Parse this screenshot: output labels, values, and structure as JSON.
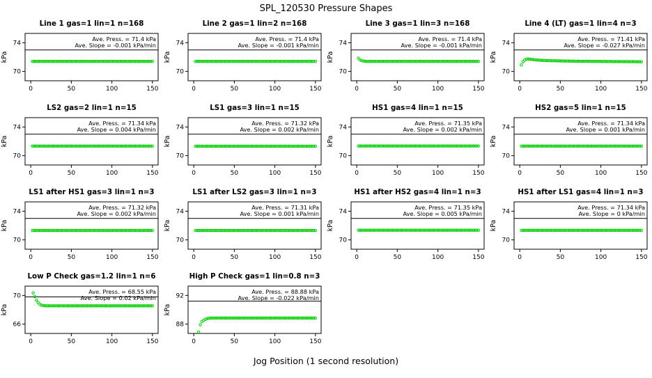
{
  "page": {
    "title": "SPL_120530  Pressure Shapes",
    "xlabel": "Jog Position (1 second resolution)"
  },
  "style": {
    "marker_color": "#00CC00",
    "axis_color": "#000000"
  },
  "chart_data": [
    {
      "type": "scatter",
      "title": "Line 1 gas=1 lin=1 n=168",
      "ann_press": "Ave. Press. = 71.4 kPa",
      "ann_slope": "Ave. Slope = -0.001 kPa/min",
      "ylabel": "kPa",
      "xticks": [
        0,
        50,
        100,
        150
      ],
      "yticks": [
        70,
        74
      ],
      "xlim": [
        -7,
        157
      ],
      "ylim": [
        68.7,
        75.3
      ],
      "ref_line": 73,
      "points": {
        "x_start": 2,
        "x_end": 150,
        "count": 74,
        "profile": [
          [
            2,
            71.4
          ],
          [
            150,
            71.4
          ]
        ]
      }
    },
    {
      "type": "scatter",
      "title": "Line 2 gas=1 lin=2 n=168",
      "ann_press": "Ave. Press. = 71.4 kPa",
      "ann_slope": "Ave. Slope = -0.001 kPa/min",
      "ylabel": "kPa",
      "xticks": [
        0,
        50,
        100,
        150
      ],
      "yticks": [
        70,
        74
      ],
      "xlim": [
        -7,
        157
      ],
      "ylim": [
        68.7,
        75.3
      ],
      "ref_line": 73,
      "points": {
        "x_start": 2,
        "x_end": 150,
        "count": 74,
        "profile": [
          [
            2,
            71.4
          ],
          [
            150,
            71.4
          ]
        ]
      }
    },
    {
      "type": "scatter",
      "title": "Line 3 gas=1 lin=3 n=168",
      "ann_press": "Ave. Press. = 71.4 kPa",
      "ann_slope": "Ave. Slope = -0.001 kPa/min",
      "ylabel": "kPa",
      "xticks": [
        0,
        50,
        100,
        150
      ],
      "yticks": [
        70,
        74
      ],
      "xlim": [
        -7,
        157
      ],
      "ylim": [
        68.7,
        75.3
      ],
      "ref_line": 73,
      "points": {
        "x_start": 2,
        "x_end": 150,
        "count": 74,
        "profile": [
          [
            2,
            71.85
          ],
          [
            4,
            71.6
          ],
          [
            8,
            71.45
          ],
          [
            12,
            71.4
          ],
          [
            150,
            71.4
          ]
        ]
      }
    },
    {
      "type": "scatter",
      "title": "Line 4 (LT) gas=1 lin=4 n=3",
      "ann_press": "Ave. Press. = 71.41 kPa",
      "ann_slope": "Ave. Slope = -0.027 kPa/min",
      "ylabel": "kPa",
      "xticks": [
        0,
        50,
        100,
        150
      ],
      "yticks": [
        70,
        74
      ],
      "xlim": [
        -7,
        157
      ],
      "ylim": [
        68.7,
        75.3
      ],
      "ref_line": 73,
      "points": {
        "x_start": 2,
        "x_end": 150,
        "count": 74,
        "profile": [
          [
            2,
            70.9
          ],
          [
            4,
            71.35
          ],
          [
            6,
            71.6
          ],
          [
            9,
            71.75
          ],
          [
            13,
            71.7
          ],
          [
            20,
            71.6
          ],
          [
            35,
            71.5
          ],
          [
            70,
            71.42
          ],
          [
            150,
            71.35
          ]
        ]
      }
    },
    {
      "type": "scatter",
      "title": "LS2 gas=2 lin=1 n=15",
      "ann_press": "Ave. Press. = 71.34 kPa",
      "ann_slope": "Ave. Slope = 0.004 kPa/min",
      "ylabel": "kPa",
      "xticks": [
        0,
        50,
        100,
        150
      ],
      "yticks": [
        70,
        74
      ],
      "xlim": [
        -7,
        157
      ],
      "ylim": [
        68.7,
        75.3
      ],
      "ref_line": 73,
      "points": {
        "x_start": 2,
        "x_end": 150,
        "count": 74,
        "profile": [
          [
            2,
            71.34
          ],
          [
            150,
            71.34
          ]
        ]
      }
    },
    {
      "type": "scatter",
      "title": "LS1 gas=3 lin=1 n=15",
      "ann_press": "Ave. Press. = 71.32 kPa",
      "ann_slope": "Ave. Slope = 0.002 kPa/min",
      "ylabel": "kPa",
      "xticks": [
        0,
        50,
        100,
        150
      ],
      "yticks": [
        70,
        74
      ],
      "xlim": [
        -7,
        157
      ],
      "ylim": [
        68.7,
        75.3
      ],
      "ref_line": 73,
      "points": {
        "x_start": 2,
        "x_end": 150,
        "count": 74,
        "profile": [
          [
            2,
            71.32
          ],
          [
            150,
            71.32
          ]
        ]
      }
    },
    {
      "type": "scatter",
      "title": "HS1 gas=4 lin=1 n=15",
      "ann_press": "Ave. Press. = 71.35 kPa",
      "ann_slope": "Ave. Slope = 0.002 kPa/min",
      "ylabel": "kPa",
      "xticks": [
        0,
        50,
        100,
        150
      ],
      "yticks": [
        70,
        74
      ],
      "xlim": [
        -7,
        157
      ],
      "ylim": [
        68.7,
        75.3
      ],
      "ref_line": 73,
      "points": {
        "x_start": 2,
        "x_end": 150,
        "count": 74,
        "profile": [
          [
            2,
            71.35
          ],
          [
            150,
            71.35
          ]
        ]
      }
    },
    {
      "type": "scatter",
      "title": "HS2 gas=5 lin=1 n=15",
      "ann_press": "Ave. Press. = 71.34 kPa",
      "ann_slope": "Ave. Slope = 0.001 kPa/min",
      "ylabel": "kPa",
      "xticks": [
        0,
        50,
        100,
        150
      ],
      "yticks": [
        70,
        74
      ],
      "xlim": [
        -7,
        157
      ],
      "ylim": [
        68.7,
        75.3
      ],
      "ref_line": 73,
      "points": {
        "x_start": 2,
        "x_end": 150,
        "count": 74,
        "profile": [
          [
            2,
            71.34
          ],
          [
            150,
            71.34
          ]
        ]
      }
    },
    {
      "type": "scatter",
      "title": "LS1 after HS1 gas=3 lin=1 n=3",
      "ann_press": "Ave. Press. = 71.32 kPa",
      "ann_slope": "Ave. Slope = 0.002 kPa/min",
      "ylabel": "kPa",
      "xticks": [
        0,
        50,
        100,
        150
      ],
      "yticks": [
        70,
        74
      ],
      "xlim": [
        -7,
        157
      ],
      "ylim": [
        68.7,
        75.3
      ],
      "ref_line": 73,
      "points": {
        "x_start": 2,
        "x_end": 150,
        "count": 74,
        "profile": [
          [
            2,
            71.32
          ],
          [
            150,
            71.32
          ]
        ]
      }
    },
    {
      "type": "scatter",
      "title": "LS1 after LS2 gas=3 lin=1 n=3",
      "ann_press": "Ave. Press. = 71.31 kPa",
      "ann_slope": "Ave. Slope = 0.001 kPa/min",
      "ylabel": "kPa",
      "xticks": [
        0,
        50,
        100,
        150
      ],
      "yticks": [
        70,
        74
      ],
      "xlim": [
        -7,
        157
      ],
      "ylim": [
        68.7,
        75.3
      ],
      "ref_line": 73,
      "points": {
        "x_start": 2,
        "x_end": 150,
        "count": 74,
        "profile": [
          [
            2,
            71.31
          ],
          [
            150,
            71.31
          ]
        ]
      }
    },
    {
      "type": "scatter",
      "title": "HS1 after HS2 gas=4 lin=1 n=3",
      "ann_press": "Ave. Press. = 71.35 kPa",
      "ann_slope": "Ave. Slope = 0.005 kPa/min",
      "ylabel": "kPa",
      "xticks": [
        0,
        50,
        100,
        150
      ],
      "yticks": [
        70,
        74
      ],
      "xlim": [
        -7,
        157
      ],
      "ylim": [
        68.7,
        75.3
      ],
      "ref_line": 73,
      "points": {
        "x_start": 2,
        "x_end": 150,
        "count": 74,
        "profile": [
          [
            2,
            71.35
          ],
          [
            150,
            71.35
          ]
        ]
      }
    },
    {
      "type": "scatter",
      "title": "HS1 after LS1 gas=4 lin=1 n=3",
      "ann_press": "Ave. Press. = 71.34 kPa",
      "ann_slope": "Ave. Slope = 0 kPa/min",
      "ylabel": "kPa",
      "xticks": [
        0,
        50,
        100,
        150
      ],
      "yticks": [
        70,
        74
      ],
      "xlim": [
        -7,
        157
      ],
      "ylim": [
        68.7,
        75.3
      ],
      "ref_line": 73,
      "points": {
        "x_start": 2,
        "x_end": 150,
        "count": 74,
        "profile": [
          [
            2,
            71.34
          ],
          [
            150,
            71.34
          ]
        ]
      }
    },
    {
      "type": "scatter",
      "title": "Low P Check gas=1.2 lin=1 n=6",
      "ann_press": "Ave. Press. = 68.55 kPa",
      "ann_slope": "Ave. Slope = 0.02 kPa/min",
      "ylabel": "kPa",
      "xticks": [
        0,
        50,
        100,
        150
      ],
      "yticks": [
        66,
        70
      ],
      "xlim": [
        -7,
        157
      ],
      "ylim": [
        64.7,
        71.3
      ],
      "ref_line": 69.8,
      "points": {
        "x_start": 3,
        "x_end": 150,
        "count": 74,
        "profile": [
          [
            3,
            70.35
          ],
          [
            4,
            70.15
          ],
          [
            5,
            69.85
          ],
          [
            6,
            69.55
          ],
          [
            8,
            69.15
          ],
          [
            10,
            68.85
          ],
          [
            13,
            68.65
          ],
          [
            16,
            68.57
          ],
          [
            20,
            68.55
          ],
          [
            150,
            68.55
          ]
        ]
      }
    },
    {
      "type": "scatter",
      "title": "High P Check gas=1 lin=0.8 n=3",
      "ann_press": "Ave. Press. = 88.88 kPa",
      "ann_slope": "Ave. Slope = -0.022 kPa/min",
      "ylabel": "kPa",
      "xticks": [
        0,
        50,
        100,
        150
      ],
      "yticks": [
        88,
        92
      ],
      "xlim": [
        -7,
        157
      ],
      "ylim": [
        86.7,
        93.3
      ],
      "ref_line": 91.2,
      "points": {
        "x_start": 6,
        "x_end": 150,
        "count": 72,
        "profile": [
          [
            6,
            86.9
          ],
          [
            8,
            87.9
          ],
          [
            10,
            88.35
          ],
          [
            13,
            88.6
          ],
          [
            16,
            88.75
          ],
          [
            20,
            88.85
          ],
          [
            150,
            88.85
          ]
        ]
      }
    }
  ]
}
